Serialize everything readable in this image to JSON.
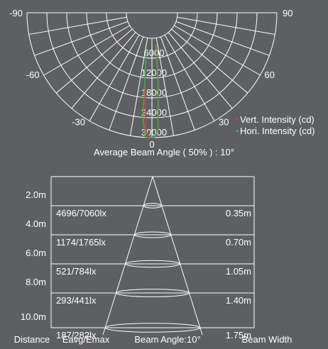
{
  "colors": {
    "background": "#5e5f62",
    "grid": "#ffffff",
    "text": "#ffffff",
    "vertical": "#e03b3b",
    "horizontal": "#3fae49"
  },
  "chart_data": [
    {
      "type": "polar",
      "angle_labels": [
        "-90",
        "90",
        "-60",
        "60",
        "-30",
        "30",
        "0"
      ],
      "radial_labels": [
        "6000",
        "12000",
        "18000",
        "24000",
        "30000"
      ],
      "radial_range": [
        0,
        30000
      ],
      "angle_range": [
        -90,
        90
      ],
      "series": [
        {
          "name": "Vert. Intensity (cd)",
          "color": "#e03b3b",
          "points": [
            [
              -5,
              15000
            ],
            [
              -3,
              28000
            ],
            [
              -1,
              30000
            ],
            [
              0,
              30000
            ],
            [
              1,
              30000
            ],
            [
              3,
              28000
            ],
            [
              5,
              15000
            ],
            [
              8,
              2000
            ]
          ]
        },
        {
          "name": "Hori. Intensity (cd)",
          "color": "#3fae49",
          "points": [
            [
              -8,
              4000
            ],
            [
              -5,
              24000
            ],
            [
              -3,
              30000
            ],
            [
              -1,
              30000
            ],
            [
              0,
              30000
            ],
            [
              1,
              30000
            ],
            [
              3,
              28000
            ],
            [
              5,
              14000
            ],
            [
              7,
              2000
            ]
          ]
        }
      ],
      "caption": "Average Beam Angle ( 50% ) : 10°"
    },
    {
      "type": "table",
      "rows": [
        {
          "distance": "2.0m",
          "eavg_emax": "4696/7060lx",
          "beam_width": "0.35m"
        },
        {
          "distance": "4.0m",
          "eavg_emax": "1174/1765lx",
          "beam_width": "0.70m"
        },
        {
          "distance": "6.0m",
          "eavg_emax": "521/784lx",
          "beam_width": "1.05m"
        },
        {
          "distance": "8.0m",
          "eavg_emax": "293/441lx",
          "beam_width": "1.40m"
        },
        {
          "distance": "10.0m",
          "eavg_emax": "187/282lx",
          "beam_width": "1.75m"
        }
      ],
      "headers": {
        "distance": "Distance",
        "eavg": "Eavg/Emax",
        "beam_angle": "Beam Angle:10°",
        "beam_width": "Beam Width"
      }
    }
  ]
}
